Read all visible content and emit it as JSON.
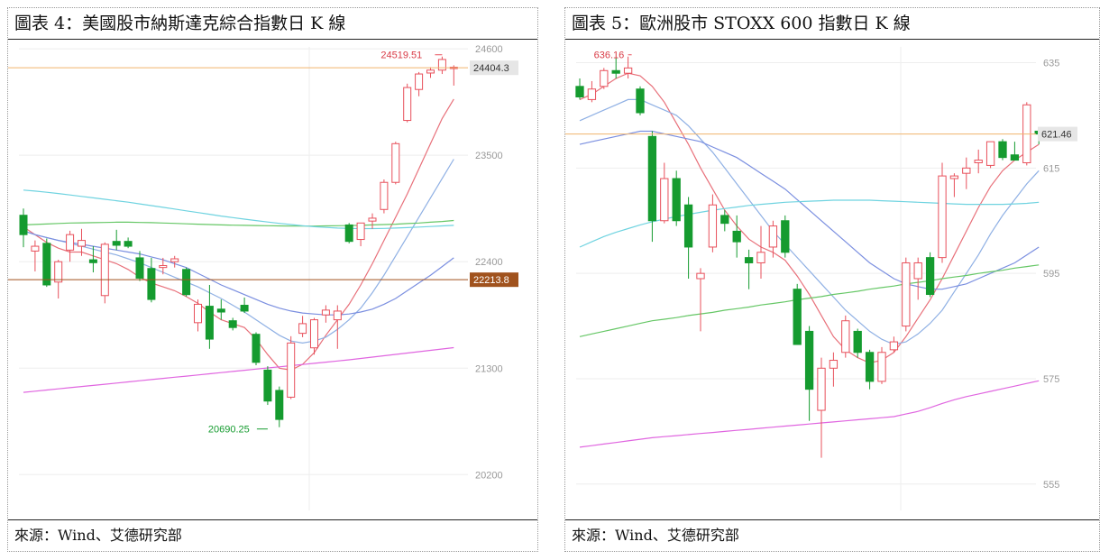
{
  "panels": [
    {
      "title": "圖表 4：美國股市納斯達克綜合指數日 K 線",
      "source": "來源：Wind、艾德研究部"
    },
    {
      "title": "圖表 5：歐洲股市 STOXX 600 指數日 K 線",
      "source": "來源：Wind、艾德研究部"
    }
  ],
  "chart_data": [
    {
      "type": "candlestick",
      "ylim": [
        19830,
        24620
      ],
      "yticks": [
        20200,
        21300,
        22400,
        23500,
        24600
      ],
      "ytick_labels": [
        "20200",
        "21300",
        "22400",
        "23500",
        "24600"
      ],
      "last_price_label": "24404.3",
      "ref_level_label": "22213.8",
      "ref_level": 22214,
      "high_annotation": {
        "label": "24519.51",
        "index": 36,
        "value": 24520
      },
      "low_annotation": {
        "label": "20690.25",
        "index": 21,
        "value": 20690
      },
      "candles": [
        {
          "o": 22880,
          "h": 22950,
          "l": 22550,
          "c": 22680
        },
        {
          "o": 22510,
          "h": 22620,
          "l": 22300,
          "c": 22560
        },
        {
          "o": 22590,
          "h": 22640,
          "l": 22140,
          "c": 22160
        },
        {
          "o": 22190,
          "h": 22420,
          "l": 22020,
          "c": 22400
        },
        {
          "o": 22520,
          "h": 22720,
          "l": 22400,
          "c": 22680
        },
        {
          "o": 22560,
          "h": 22740,
          "l": 22460,
          "c": 22620
        },
        {
          "o": 22420,
          "h": 22560,
          "l": 22290,
          "c": 22390
        },
        {
          "o": 22050,
          "h": 22600,
          "l": 21970,
          "c": 22580
        },
        {
          "o": 22610,
          "h": 22730,
          "l": 22520,
          "c": 22570
        },
        {
          "o": 22610,
          "h": 22650,
          "l": 22540,
          "c": 22560
        },
        {
          "o": 22440,
          "h": 22510,
          "l": 22200,
          "c": 22230
        },
        {
          "o": 22330,
          "h": 22440,
          "l": 21980,
          "c": 22010
        },
        {
          "o": 22340,
          "h": 22440,
          "l": 22270,
          "c": 22360
        },
        {
          "o": 22400,
          "h": 22460,
          "l": 22340,
          "c": 22430
        },
        {
          "o": 22320,
          "h": 22340,
          "l": 22040,
          "c": 22060
        },
        {
          "o": 21770,
          "h": 22010,
          "l": 21680,
          "c": 21960
        },
        {
          "o": 21940,
          "h": 22160,
          "l": 21500,
          "c": 21600
        },
        {
          "o": 21910,
          "h": 22010,
          "l": 21800,
          "c": 21880
        },
        {
          "o": 21790,
          "h": 21820,
          "l": 21690,
          "c": 21720
        },
        {
          "o": 21950,
          "h": 22030,
          "l": 21870,
          "c": 21890
        },
        {
          "o": 21650,
          "h": 21670,
          "l": 21330,
          "c": 21360
        },
        {
          "o": 21280,
          "h": 21320,
          "l": 20920,
          "c": 20960
        },
        {
          "o": 21070,
          "h": 21110,
          "l": 20690,
          "c": 20770
        },
        {
          "o": 21000,
          "h": 21630,
          "l": 20980,
          "c": 21560
        },
        {
          "o": 21660,
          "h": 21840,
          "l": 21620,
          "c": 21760
        },
        {
          "o": 21510,
          "h": 21820,
          "l": 21440,
          "c": 21800
        },
        {
          "o": 21850,
          "h": 21950,
          "l": 21770,
          "c": 21900
        },
        {
          "o": 21800,
          "h": 21950,
          "l": 21500,
          "c": 21890
        },
        {
          "o": 22780,
          "h": 22800,
          "l": 22590,
          "c": 22610
        },
        {
          "o": 22630,
          "h": 22800,
          "l": 22560,
          "c": 22800
        },
        {
          "o": 22820,
          "h": 22900,
          "l": 22740,
          "c": 22850
        },
        {
          "o": 22940,
          "h": 23250,
          "l": 22900,
          "c": 23220
        },
        {
          "o": 23220,
          "h": 23640,
          "l": 23200,
          "c": 23620
        },
        {
          "o": 23860,
          "h": 24240,
          "l": 23840,
          "c": 24200
        },
        {
          "o": 24180,
          "h": 24360,
          "l": 24110,
          "c": 24340
        },
        {
          "o": 24350,
          "h": 24410,
          "l": 24300,
          "c": 24380
        },
        {
          "o": 24380,
          "h": 24520,
          "l": 24340,
          "c": 24490
        },
        {
          "o": 24410,
          "h": 24430,
          "l": 24220,
          "c": 24410
        }
      ],
      "ma_lines": [
        {
          "color": "#e8707a",
          "values": [
            22760,
            22680,
            22600,
            22540,
            22500,
            22500,
            22460,
            22420,
            22380,
            22320,
            22240,
            22180,
            22140,
            22100,
            22040,
            21970,
            21880,
            21800,
            21760,
            21720,
            21600,
            21440,
            21300,
            21280,
            21340,
            21460,
            21640,
            21800,
            21960,
            22160,
            22380,
            22620,
            22860,
            23100,
            23360,
            23620,
            23880,
            24080
          ]
        },
        {
          "color": "#8fb0e4",
          "values": [
            22720,
            22680,
            22650,
            22620,
            22590,
            22560,
            22530,
            22500,
            22470,
            22430,
            22390,
            22340,
            22290,
            22240,
            22190,
            22140,
            22080,
            22020,
            21950,
            21880,
            21800,
            21720,
            21640,
            21580,
            21560,
            21580,
            21620,
            21700,
            21800,
            21920,
            22080,
            22260,
            22460,
            22660,
            22860,
            23060,
            23260,
            23460
          ]
        },
        {
          "color": "#7b8fe0",
          "values": [
            22720,
            22680,
            22650,
            22620,
            22600,
            22580,
            22560,
            22540,
            22520,
            22500,
            22480,
            22450,
            22420,
            22380,
            22340,
            22280,
            22220,
            22160,
            22110,
            22060,
            22010,
            21960,
            21920,
            21890,
            21870,
            21860,
            21850,
            21850,
            21860,
            21880,
            21910,
            21960,
            22020,
            22100,
            22180,
            22260,
            22350,
            22440
          ]
        },
        {
          "color": "#66c766",
          "values": [
            22780,
            22785,
            22790,
            22795,
            22800,
            22802,
            22804,
            22806,
            22808,
            22808,
            22806,
            22804,
            22800,
            22796,
            22792,
            22788,
            22784,
            22780,
            22778,
            22776,
            22774,
            22772,
            22770,
            22768,
            22768,
            22768,
            22770,
            22772,
            22774,
            22776,
            22780,
            22784,
            22788,
            22794,
            22800,
            22808,
            22816,
            22826
          ]
        },
        {
          "color": "#6fd3e0",
          "values": [
            23140,
            23130,
            23118,
            23105,
            23090,
            23075,
            23060,
            23045,
            23030,
            23015,
            22998,
            22980,
            22962,
            22944,
            22926,
            22908,
            22890,
            22872,
            22856,
            22840,
            22825,
            22810,
            22796,
            22784,
            22772,
            22762,
            22754,
            22748,
            22744,
            22742,
            22742,
            22744,
            22748,
            22752,
            22758,
            22764,
            22770,
            22776
          ]
        },
        {
          "color": "#e066e0",
          "values": [
            21050,
            21062,
            21074,
            21086,
            21098,
            21110,
            21122,
            21134,
            21146,
            21158,
            21170,
            21182,
            21194,
            21206,
            21218,
            21230,
            21242,
            21254,
            21266,
            21278,
            21290,
            21302,
            21314,
            21326,
            21338,
            21350,
            21362,
            21374,
            21386,
            21400,
            21414,
            21428,
            21442,
            21456,
            21470,
            21484,
            21498,
            21512
          ]
        }
      ]
    },
    {
      "type": "candlestick",
      "ylim": [
        550,
        638
      ],
      "yticks": [
        555,
        575,
        595,
        615,
        635
      ],
      "ytick_labels": [
        "555",
        "575",
        "595",
        "615",
        "635"
      ],
      "last_price_label": "621.46",
      "ref_level": 621.46,
      "high_annotation": {
        "label": "636.16",
        "index": 4,
        "value": 636.16
      },
      "low_annotation": null,
      "candles": [
        {
          "o": 630.5,
          "h": 632.0,
          "l": 628.0,
          "c": 628.5
        },
        {
          "o": 628.0,
          "h": 631.5,
          "l": 627.5,
          "c": 630.0
        },
        {
          "o": 630.5,
          "h": 634.0,
          "l": 630.0,
          "c": 633.5
        },
        {
          "o": 633.5,
          "h": 636.0,
          "l": 632.0,
          "c": 633.0
        },
        {
          "o": 633.0,
          "h": 636.16,
          "l": 632.0,
          "c": 634.0
        },
        {
          "o": 630.0,
          "h": 630.5,
          "l": 625.0,
          "c": 625.5
        },
        {
          "o": 621.0,
          "h": 622.0,
          "l": 601.0,
          "c": 605.0
        },
        {
          "o": 605.0,
          "h": 616.0,
          "l": 604.5,
          "c": 613.0
        },
        {
          "o": 613.0,
          "h": 614.5,
          "l": 604.0,
          "c": 605.0
        },
        {
          "o": 608.0,
          "h": 609.5,
          "l": 594.0,
          "c": 600.0
        },
        {
          "o": 594.0,
          "h": 596.0,
          "l": 584.0,
          "c": 595.0
        },
        {
          "o": 600.0,
          "h": 610.0,
          "l": 599.0,
          "c": 608.0
        },
        {
          "o": 606.0,
          "h": 607.0,
          "l": 603.0,
          "c": 604.5
        },
        {
          "o": 603.0,
          "h": 606.0,
          "l": 598.0,
          "c": 601.0
        },
        {
          "o": 598.0,
          "h": 599.5,
          "l": 592.0,
          "c": 597.0
        },
        {
          "o": 597.0,
          "h": 604.0,
          "l": 594.0,
          "c": 599.0
        },
        {
          "o": 600.0,
          "h": 605.0,
          "l": 598.0,
          "c": 604.0
        },
        {
          "o": 605.0,
          "h": 606.0,
          "l": 598.0,
          "c": 599.0
        },
        {
          "o": 592.0,
          "h": 593.0,
          "l": 581.5,
          "c": 581.5
        },
        {
          "o": 584.0,
          "h": 585.0,
          "l": 567.0,
          "c": 573.0
        },
        {
          "o": 569.0,
          "h": 579.0,
          "l": 560.0,
          "c": 577.0
        },
        {
          "o": 577.0,
          "h": 580.0,
          "l": 573.5,
          "c": 578.5
        },
        {
          "o": 580.0,
          "h": 587.0,
          "l": 579.0,
          "c": 586.0
        },
        {
          "o": 584.0,
          "h": 584.5,
          "l": 579.0,
          "c": 580.0
        },
        {
          "o": 580.0,
          "h": 580.5,
          "l": 573.0,
          "c": 574.5
        },
        {
          "o": 574.5,
          "h": 581.0,
          "l": 574.0,
          "c": 580.0
        },
        {
          "o": 580.5,
          "h": 583.0,
          "l": 580.0,
          "c": 582.0
        },
        {
          "o": 585.0,
          "h": 598.0,
          "l": 584.0,
          "c": 597.0
        },
        {
          "o": 594.0,
          "h": 598.0,
          "l": 590.0,
          "c": 597.0
        },
        {
          "o": 598.0,
          "h": 599.0,
          "l": 590.5,
          "c": 591.0
        },
        {
          "o": 598.0,
          "h": 616.0,
          "l": 597.0,
          "c": 613.5
        },
        {
          "o": 613.0,
          "h": 614.0,
          "l": 609.5,
          "c": 613.5
        },
        {
          "o": 614.0,
          "h": 617.0,
          "l": 611.0,
          "c": 615.0
        },
        {
          "o": 616.0,
          "h": 618.5,
          "l": 614.0,
          "c": 616.5
        },
        {
          "o": 615.5,
          "h": 620.0,
          "l": 615.0,
          "c": 620.0
        },
        {
          "o": 620.0,
          "h": 620.5,
          "l": 616.5,
          "c": 617.0
        },
        {
          "o": 617.5,
          "h": 620.0,
          "l": 616.5,
          "c": 616.5
        },
        {
          "o": 616.0,
          "h": 627.5,
          "l": 615.5,
          "c": 627.0
        },
        {
          "o": 622.0,
          "h": 622.5,
          "l": 619.5,
          "c": 621.46
        }
      ],
      "ma_lines": [
        {
          "color": "#e8707a",
          "values": [
            628.0,
            629.0,
            630.5,
            632.0,
            633.0,
            632.5,
            630.5,
            627.5,
            623.5,
            619.5,
            615.0,
            611.0,
            607.0,
            604.0,
            601.5,
            600.0,
            599.0,
            597.5,
            594.5,
            591.0,
            587.0,
            583.0,
            580.5,
            579.0,
            578.0,
            578.5,
            580.0,
            583.0,
            586.5,
            590.0,
            594.0,
            598.5,
            603.0,
            607.5,
            611.5,
            614.5,
            616.5,
            618.0,
            619.5
          ]
        },
        {
          "color": "#8fb0e4",
          "values": [
            624.0,
            625.0,
            626.0,
            627.0,
            628.0,
            628.0,
            627.0,
            626.0,
            625.0,
            623.0,
            620.5,
            618.0,
            615.0,
            612.0,
            609.0,
            606.0,
            603.0,
            600.5,
            598.0,
            595.5,
            593.0,
            590.5,
            588.0,
            586.0,
            584.0,
            582.5,
            581.5,
            582.0,
            583.5,
            585.5,
            588.0,
            591.5,
            595.0,
            598.5,
            602.5,
            606.0,
            609.0,
            612.0,
            614.5
          ]
        },
        {
          "color": "#7b8fe0",
          "values": [
            619.5,
            620.0,
            620.5,
            621.0,
            621.5,
            622.0,
            622.0,
            621.5,
            621.0,
            620.5,
            620.0,
            619.0,
            618.0,
            617.0,
            615.5,
            614.0,
            612.5,
            611.0,
            609.0,
            607.0,
            605.0,
            603.0,
            601.0,
            599.0,
            597.0,
            595.5,
            594.0,
            593.0,
            592.5,
            592.0,
            592.0,
            592.5,
            593.0,
            594.0,
            595.0,
            596.0,
            597.0,
            598.5,
            600.0
          ]
        },
        {
          "color": "#66c766",
          "values": [
            583.0,
            583.5,
            584.0,
            584.5,
            585.0,
            585.5,
            586.0,
            586.3,
            586.6,
            587.0,
            587.3,
            587.6,
            588.0,
            588.3,
            588.6,
            589.0,
            589.3,
            589.6,
            590.0,
            590.3,
            590.6,
            591.0,
            591.3,
            591.6,
            592.0,
            592.3,
            592.6,
            593.0,
            593.3,
            593.6,
            594.0,
            594.3,
            594.6,
            595.0,
            595.3,
            595.6,
            596.0,
            596.3,
            596.6
          ]
        },
        {
          "color": "#6fd3e0",
          "values": [
            600.0,
            601.0,
            602.0,
            602.8,
            603.5,
            604.2,
            604.8,
            605.3,
            605.8,
            606.2,
            606.6,
            607.0,
            607.3,
            607.6,
            607.9,
            608.1,
            608.3,
            608.5,
            608.6,
            608.7,
            608.8,
            608.9,
            608.9,
            608.9,
            608.9,
            608.8,
            608.7,
            608.6,
            608.5,
            608.4,
            608.3,
            608.2,
            608.1,
            608.1,
            608.1,
            608.1,
            608.2,
            608.3,
            608.5
          ]
        },
        {
          "color": "#e066e0",
          "values": [
            562.0,
            562.3,
            562.6,
            562.9,
            563.2,
            563.5,
            563.8,
            564.0,
            564.2,
            564.4,
            564.6,
            564.8,
            565.0,
            565.2,
            565.4,
            565.6,
            565.8,
            566.0,
            566.2,
            566.4,
            566.6,
            566.8,
            567.0,
            567.2,
            567.4,
            567.6,
            567.8,
            568.3,
            568.8,
            569.5,
            570.3,
            571.0,
            571.6,
            572.1,
            572.6,
            573.1,
            573.6,
            574.1,
            574.6
          ]
        }
      ]
    }
  ]
}
